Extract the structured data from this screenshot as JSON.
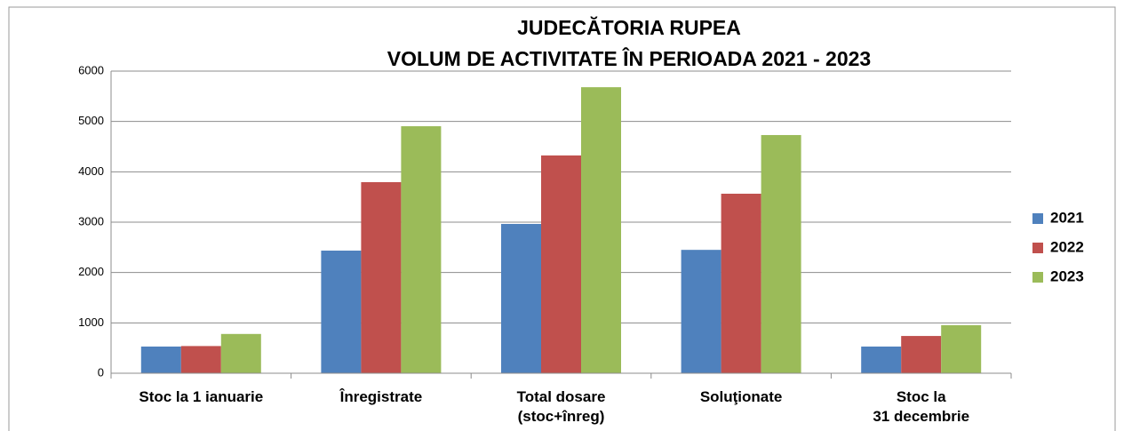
{
  "chart_data": {
    "type": "bar",
    "title": "JUDECĂTORIA RUPEA",
    "subtitle": "VOLUM DE ACTIVITATE ÎN PERIOADA  2021  -  2023",
    "categories": [
      "Stoc la 1 ianuarie",
      "Înregistrate",
      "Total dosare\n(stoc+înreg)",
      "Soluţionate",
      "Stoc la\n31 decembrie"
    ],
    "series": [
      {
        "name": "2021",
        "color": "#4f81bd",
        "values": [
          530,
          2435,
          2965,
          2450,
          530
        ]
      },
      {
        "name": "2022",
        "color": "#c0504d",
        "values": [
          540,
          3795,
          4325,
          3565,
          740
        ]
      },
      {
        "name": "2023",
        "color": "#9bbb59",
        "values": [
          780,
          4905,
          5680,
          4730,
          955
        ]
      }
    ],
    "ylim": [
      0,
      6000
    ],
    "yticks": [
      0,
      1000,
      2000,
      3000,
      4000,
      5000,
      6000
    ],
    "grid": true,
    "legend": "right"
  }
}
